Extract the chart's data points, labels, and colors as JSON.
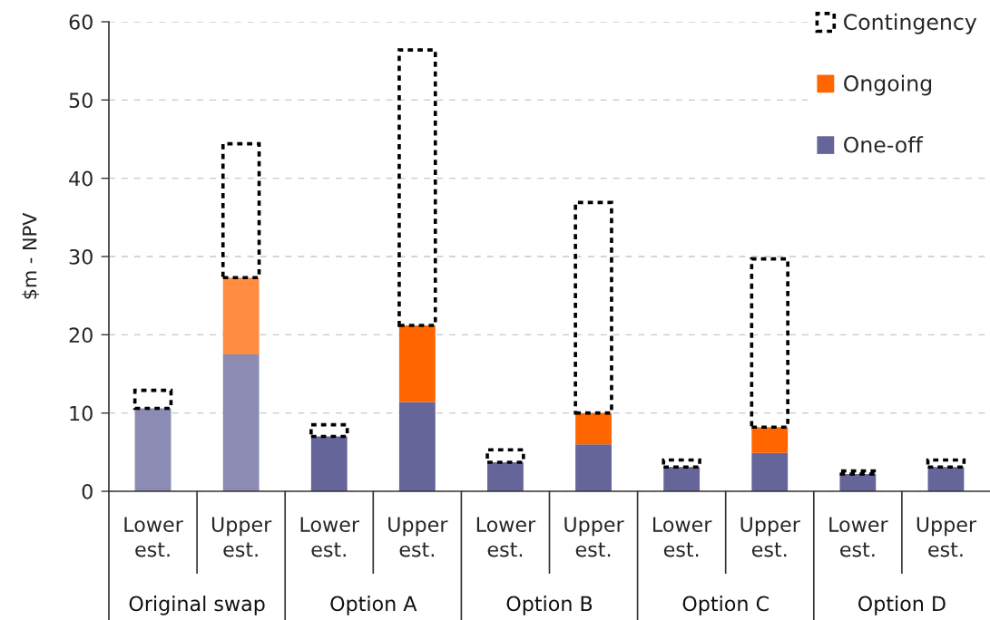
{
  "chart_data": {
    "type": "bar",
    "stacked": true,
    "categories": [
      "Lower est.",
      "Upper est.",
      "Lower est.",
      "Upper est.",
      "Lower est.",
      "Upper est.",
      "Lower est.",
      "Upper est.",
      "Lower est.",
      "Upper est."
    ],
    "annotations": [
      "Original swap",
      "Option A",
      "Option B",
      "Option C",
      "Option D"
    ],
    "ylabel": "$m - NPV",
    "ylim": [
      0,
      60
    ],
    "yticks": [
      0,
      10,
      20,
      30,
      40,
      50,
      60
    ],
    "grid": "y",
    "legend": "top right",
    "series": [
      {
        "name": "One-off",
        "color": "#65659a",
        "colors": [
          "#8b8bb3",
          "#8b8bb3",
          "#65659a",
          "#65659a",
          "#65659a",
          "#65659a",
          "#65659a",
          "#65659a",
          "#65659a",
          "#65659a"
        ],
        "values": [
          10.6,
          17.5,
          7.0,
          11.4,
          3.7,
          6.0,
          3.1,
          4.9,
          2.2,
          3.1
        ]
      },
      {
        "name": "Ongoing",
        "color": "#ff6600",
        "colors": [
          "#ff8c40",
          "#ff8c40",
          "#ff6600",
          "#ff6600",
          "#ff6600",
          "#ff6600",
          "#ff6600",
          "#ff6600",
          "#ff6600",
          "#ff6600"
        ],
        "values": [
          null,
          9.8,
          null,
          9.8,
          null,
          4.0,
          null,
          3.3,
          null,
          null
        ]
      },
      {
        "name": "Contingency",
        "color": "#000000",
        "line_style": "dashed",
        "values": [
          2.3,
          17.1,
          1.5,
          35.2,
          1.6,
          26.9,
          0.9,
          21.5,
          0.4,
          0.9
        ]
      }
    ]
  }
}
